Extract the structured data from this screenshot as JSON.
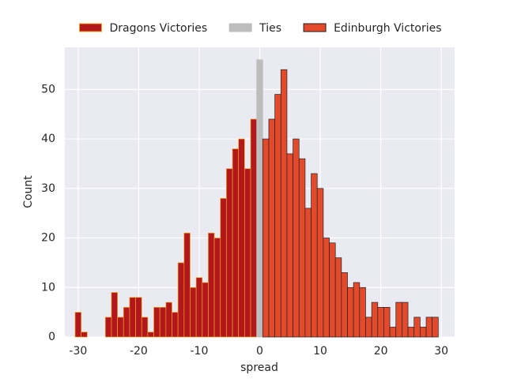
{
  "chart_data": {
    "type": "histogram",
    "xlabel": "spread",
    "ylabel": "Count",
    "xlim": [
      -32.2,
      32.2
    ],
    "ylim": [
      0,
      58.5
    ],
    "xticks": [
      -30,
      -20,
      -10,
      0,
      10,
      20,
      30
    ],
    "yticks": [
      0,
      10,
      20,
      30,
      40,
      50
    ],
    "grid": true,
    "legend": "upper center",
    "series": [
      {
        "name": "Dragons Victories",
        "color": "#b2181b",
        "edgecolor": "#f0a020",
        "bins": [
          -30.5,
          -29.5,
          -28.5,
          -27.5,
          -26.5,
          -25.5,
          -24.5,
          -23.5,
          -22.5,
          -21.5,
          -20.5,
          -19.5,
          -18.5,
          -17.5,
          -16.5,
          -15.5,
          -14.5,
          -13.5,
          -12.5,
          -11.5,
          -10.5,
          -9.5,
          -8.5,
          -7.5,
          -6.5,
          -5.5,
          -4.5,
          -3.5,
          -2.5,
          -1.5,
          -0.5
        ],
        "values": [
          5,
          1,
          0,
          0,
          0,
          4,
          9,
          4,
          6,
          8,
          8,
          4,
          1,
          6,
          6,
          7,
          5,
          15,
          21,
          10,
          12,
          11,
          21,
          20,
          28,
          34,
          38,
          40,
          34,
          44
        ]
      },
      {
        "name": "Ties",
        "color": "#bdbdbd",
        "edgecolor": "#bdbdbd",
        "bins": [
          -0.5,
          0.5
        ],
        "values": [
          56
        ]
      },
      {
        "name": "Edinburgh Victories",
        "color": "#e34a2c",
        "edgecolor": "#222222",
        "bins": [
          0.5,
          1.5,
          2.5,
          3.5,
          4.5,
          5.5,
          6.5,
          7.5,
          8.5,
          9.5,
          10.5,
          11.5,
          12.5,
          13.5,
          14.5,
          15.5,
          16.5,
          17.5,
          18.5,
          19.5,
          20.5,
          21.5,
          22.5,
          23.5,
          24.5,
          25.5,
          26.5,
          27.5,
          28.5,
          29.5
        ],
        "values": [
          40,
          44,
          49,
          54,
          37,
          40,
          36,
          26,
          33,
          30,
          20,
          19,
          16,
          13,
          10,
          11,
          10,
          4,
          7,
          6,
          6,
          2,
          7,
          7,
          2,
          4,
          2,
          4,
          4
        ]
      }
    ]
  }
}
